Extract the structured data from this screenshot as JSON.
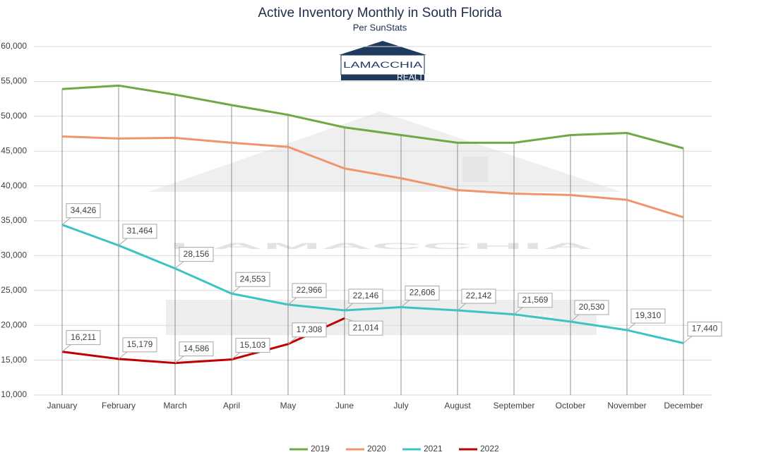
{
  "chart_data": {
    "type": "line",
    "title": "Active Inventory Monthly in South Florida",
    "subtitle": "Per SunStats",
    "logo": {
      "name": "LAMACCHIA",
      "tagline": "REALTY"
    },
    "categories": [
      "January",
      "February",
      "March",
      "April",
      "May",
      "June",
      "July",
      "August",
      "September",
      "October",
      "November",
      "December"
    ],
    "ylim": [
      10000,
      60000
    ],
    "yticks": [
      {
        "value": 10000,
        "label": "10,000"
      },
      {
        "value": 15000,
        "label": "15,000"
      },
      {
        "value": 20000,
        "label": "20,000"
      },
      {
        "value": 25000,
        "label": "25,000"
      },
      {
        "value": 30000,
        "label": "30,000"
      },
      {
        "value": 35000,
        "label": "35,000"
      },
      {
        "value": 40000,
        "label": "40,000"
      },
      {
        "value": 45000,
        "label": "45,000"
      },
      {
        "value": 50000,
        "label": "50,000"
      },
      {
        "value": 55000,
        "label": "55,000"
      },
      {
        "value": 60000,
        "label": "60,000"
      }
    ],
    "grid": true,
    "legend": "bottom",
    "series": [
      {
        "name": "2019",
        "color": "#70a845",
        "values": [
          53900,
          54400,
          53100,
          51600,
          50200,
          48400,
          47300,
          46200,
          46200,
          47300,
          47600,
          45400
        ]
      },
      {
        "name": "2020",
        "color": "#f0956a",
        "values": [
          47100,
          46800,
          46900,
          46200,
          45600,
          42500,
          41100,
          39400,
          38900,
          38700,
          38000,
          35500
        ]
      },
      {
        "name": "2021",
        "color": "#3cc4c4",
        "values": [
          34426,
          31464,
          28156,
          24553,
          22966,
          22146,
          22606,
          22142,
          21569,
          20530,
          19310,
          17440
        ],
        "value_labels": [
          "34,426",
          "31,464",
          "28,156",
          "24,553",
          "22,966",
          "22,146",
          "22,606",
          "22,142",
          "21,569",
          "20,530",
          "19,310",
          "17,440"
        ]
      },
      {
        "name": "2022",
        "color": "#c00000",
        "values": [
          16211,
          15179,
          14586,
          15103,
          17308,
          21014,
          null,
          null,
          null,
          null,
          null,
          null
        ],
        "value_labels": [
          "16,211",
          "15,179",
          "14,586",
          "15,103",
          "17,308",
          "21,014",
          null,
          null,
          null,
          null,
          null,
          null
        ]
      }
    ]
  }
}
